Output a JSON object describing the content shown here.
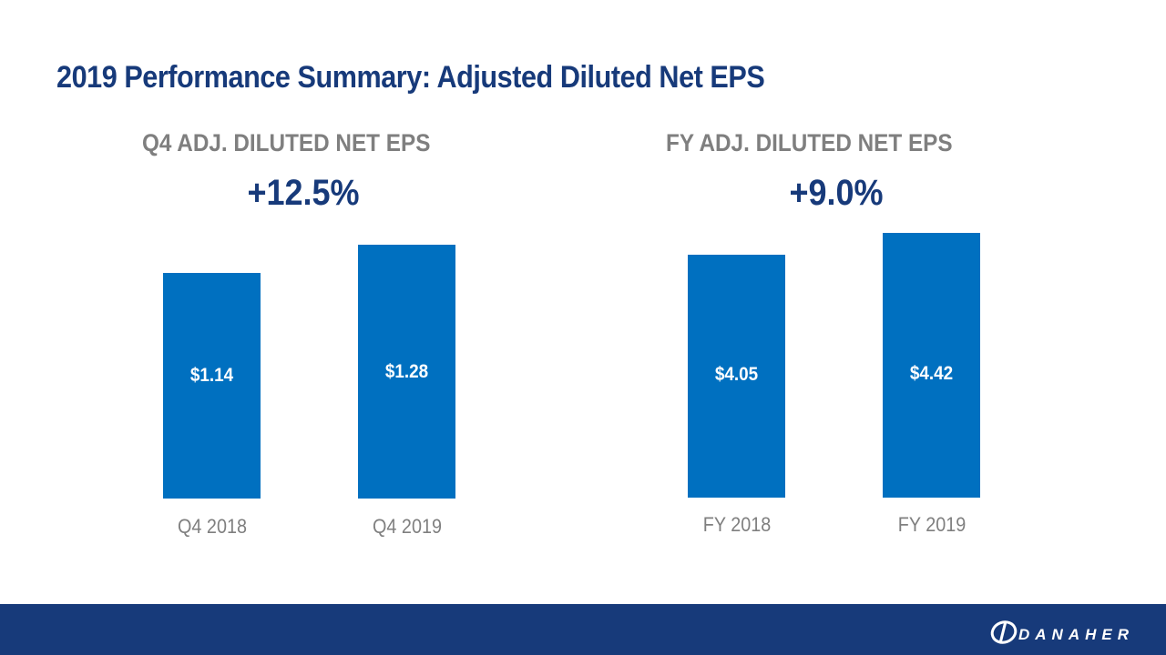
{
  "slide": {
    "title": "2019 Performance Summary: Adjusted Diluted Net EPS",
    "logo_text": "DANAHER"
  },
  "colors": {
    "title": "#173a7a",
    "bar": "#0070c0",
    "footer": "#173a7a",
    "heading": "#7f7f7f"
  },
  "chart_data": [
    {
      "type": "bar",
      "title": "Q4 ADJ. DILUTED NET EPS",
      "subtitle": "+12.5%",
      "categories": [
        "Q4 2018",
        "Q4 2019"
      ],
      "values": [
        1.14,
        1.28
      ],
      "data_labels": [
        "$1.14",
        "$1.28"
      ],
      "ylim": [
        0,
        1.4
      ]
    },
    {
      "type": "bar",
      "title": "FY ADJ. DILUTED NET EPS",
      "subtitle": "+9.0%",
      "categories": [
        "FY 2018",
        "FY 2019"
      ],
      "values": [
        4.05,
        4.42
      ],
      "data_labels": [
        "$4.05",
        "$4.42"
      ],
      "ylim": [
        0,
        4.8
      ]
    }
  ]
}
